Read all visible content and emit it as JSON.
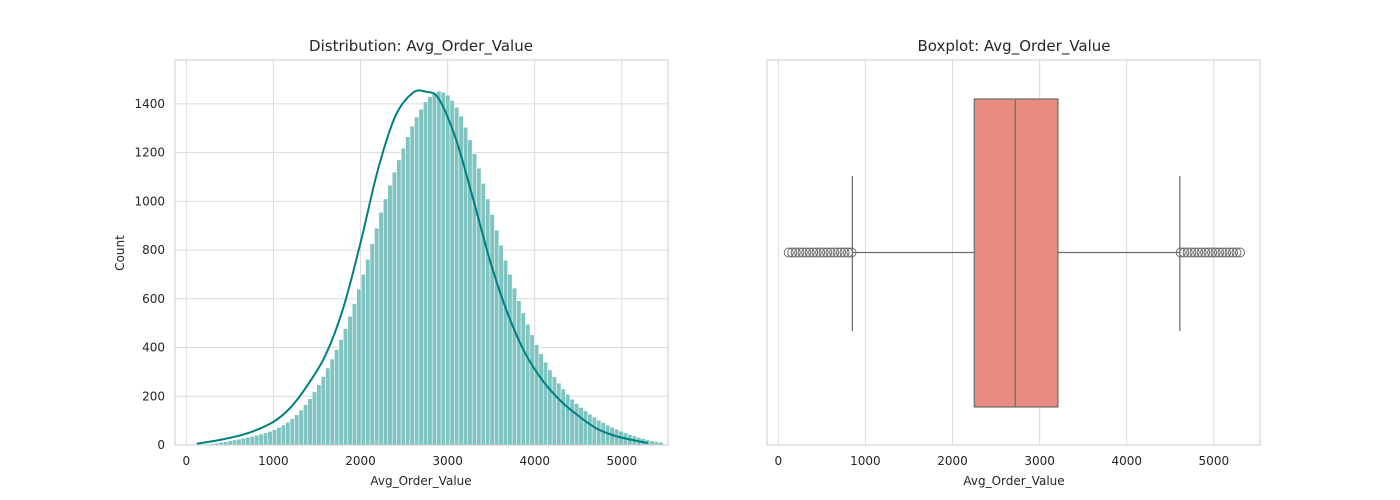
{
  "chart_data": [
    {
      "type": "histogram",
      "title": "Distribution: Avg_Order_Value",
      "xlabel": "Avg_Order_Value",
      "ylabel": "Count",
      "xlim": [
        -130,
        5530
      ],
      "ylim": [
        0,
        1580
      ],
      "xticks": [
        0,
        1000,
        2000,
        3000,
        4000,
        5000
      ],
      "yticks": [
        0,
        200,
        400,
        600,
        800,
        1000,
        1200,
        1400
      ],
      "grid": true,
      "bar_color": "#7fc4c1",
      "bar_edge_color": "#ffffff",
      "kde_color": "#008080",
      "bins": {
        "start": 120,
        "width": 51,
        "counts": [
          2,
          3,
          4,
          6,
          8,
          11,
          14,
          17,
          21,
          24,
          28,
          32,
          36,
          40,
          45,
          50,
          56,
          63,
          72,
          82,
          94,
          108,
          124,
          143,
          165,
          190,
          218,
          248,
          281,
          316,
          353,
          392,
          433,
          478,
          528,
          580,
          640,
          700,
          762,
          826,
          890,
          955,
          1010,
          1066,
          1120,
          1170,
          1218,
          1265,
          1308,
          1346,
          1378,
          1408,
          1430,
          1446,
          1452,
          1448,
          1436,
          1414,
          1386,
          1350,
          1304,
          1252,
          1196,
          1136,
          1074,
          1010,
          946,
          882,
          820,
          758,
          700,
          644,
          592,
          542,
          496,
          452,
          412,
          374,
          340,
          308,
          280,
          254,
          230,
          208,
          188,
          170,
          154,
          140,
          126,
          114,
          102,
          92,
          82,
          73,
          65,
          57,
          50,
          43,
          37,
          31,
          26,
          21,
          17,
          14,
          11
        ]
      },
      "kde": {
        "x": [
          120,
          400,
          700,
          1000,
          1200,
          1400,
          1600,
          1800,
          2000,
          2200,
          2400,
          2600,
          2750,
          2900,
          3100,
          3300,
          3500,
          3700,
          3900,
          4100,
          4300,
          4500,
          4700,
          4900,
          5100,
          5300
        ],
        "y": [
          5,
          22,
          48,
          95,
          155,
          250,
          370,
          560,
          830,
          1130,
          1350,
          1445,
          1450,
          1420,
          1250,
          1000,
          740,
          530,
          370,
          260,
          180,
          120,
          70,
          40,
          22,
          8
        ]
      }
    },
    {
      "type": "boxplot",
      "title": "Boxplot: Avg_Order_Value",
      "xlabel": "Avg_Order_Value",
      "xlim": [
        -130,
        5530
      ],
      "xticks": [
        0,
        1000,
        2000,
        3000,
        4000,
        5000
      ],
      "grid": true,
      "box_color": "#e98c80",
      "line_color": "#6b6b6b",
      "q1": 2250,
      "median": 2720,
      "q3": 3210,
      "whisker_low": 850,
      "whisker_high": 4610,
      "outliers_low": [
        120,
        160,
        200,
        240,
        280,
        320,
        360,
        400,
        440,
        480,
        520,
        560,
        600,
        640,
        680,
        720,
        760,
        800,
        840
      ],
      "outliers_high": [
        4620,
        4660,
        4700,
        4740,
        4780,
        4820,
        4860,
        4900,
        4940,
        4980,
        5020,
        5060,
        5100,
        5140,
        5180,
        5220,
        5260,
        5300
      ]
    }
  ]
}
